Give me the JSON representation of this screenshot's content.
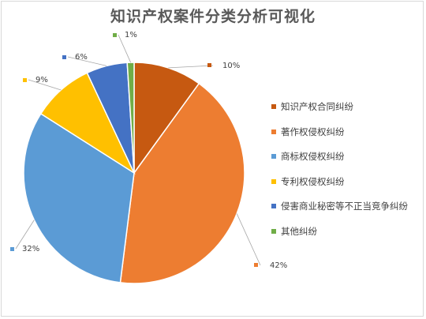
{
  "chart_data": {
    "type": "pie",
    "title": "知识产权案件分类分析可视化",
    "categories": [
      "知识产权合同纠纷",
      "著作权侵权纠纷",
      "商标权侵权纠纷",
      "专利权侵权纠纷",
      "侵害商业秘密等不正当竞争纠纷",
      "其他纠纷"
    ],
    "values": [
      10,
      42,
      32,
      9,
      6,
      1
    ],
    "data_labels": [
      "10%",
      "42%",
      "32%",
      "9%",
      "6%",
      "1%"
    ],
    "colors": [
      "#c65911",
      "#ed7d31",
      "#5b9bd5",
      "#ffc000",
      "#4472c4",
      "#70ad47"
    ],
    "legend_position": "right"
  }
}
